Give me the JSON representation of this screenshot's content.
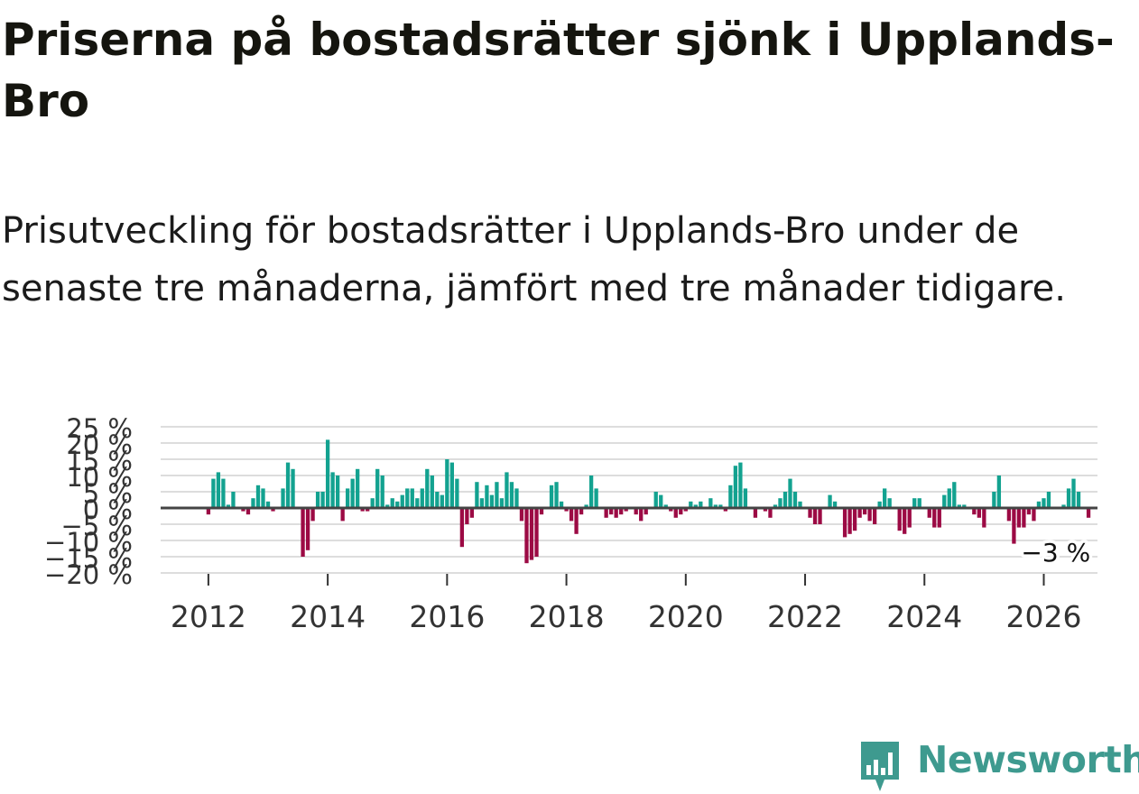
{
  "title": "Priserna på bostadsrätter sjönk i Upplands-Bro",
  "subtitle": "Prisutveckling för bostadsrätter i Upplands-Bro under de senaste tre månaderna, jämfört med tre månader tidigare.",
  "brand": {
    "name": "Newsworthy",
    "color": "#3e9a8f",
    "icon": "bar-chart-badge-icon"
  },
  "colors": {
    "positive": "#13a290",
    "negative": "#9c0a44",
    "grid": "#dddddd",
    "zero": "#444444"
  },
  "chart_data": {
    "type": "bar",
    "title": "Prisutveckling för bostadsrätter i Upplands-Bro",
    "xlabel": "",
    "ylabel": "",
    "ylim": [
      -20,
      25
    ],
    "yticks": [
      25,
      20,
      15,
      10,
      5,
      0,
      -5,
      -10,
      -15,
      -20
    ],
    "ytick_labels": [
      "25 %",
      "20 %",
      "15 %",
      "10 %",
      "5 %",
      "0 %",
      "−5 %",
      "−10 %",
      "−15 %",
      "−20 %"
    ],
    "xlim": [
      2011.2,
      2026.9
    ],
    "xticks": [
      2012,
      2014,
      2016,
      2018,
      2020,
      2022,
      2024,
      2026
    ],
    "xtick_labels": [
      "2012",
      "2014",
      "2016",
      "2018",
      "2020",
      "2022",
      "2024",
      "2026"
    ],
    "grid": true,
    "annotation": {
      "x": 2026.08,
      "y": -3,
      "label": "−3 %"
    },
    "x_start": 2012.0,
    "x_step": 0.08333,
    "values": [
      -2,
      9,
      11,
      9,
      1,
      5,
      0,
      -1,
      -2,
      3,
      7,
      6,
      2,
      -1,
      0,
      6,
      14,
      12,
      0,
      -15,
      -13,
      -4,
      5,
      5,
      21,
      11,
      10,
      -4,
      6,
      9,
      12,
      -1,
      -1,
      3,
      12,
      10,
      1,
      3,
      2,
      4,
      6,
      6,
      3,
      6,
      12,
      10,
      5,
      4,
      15,
      14,
      9,
      -12,
      -5,
      -3,
      8,
      3,
      7,
      4,
      8,
      3,
      11,
      8,
      6,
      -4,
      -17,
      -16,
      -15,
      -2,
      0,
      7,
      8,
      2,
      -1,
      -4,
      -8,
      -2,
      1,
      10,
      6,
      0,
      -3,
      -2,
      -3,
      -2,
      -1,
      0,
      -2,
      -4,
      -2,
      0,
      5,
      4,
      1,
      -1,
      -3,
      -2,
      -1,
      2,
      1,
      2,
      0,
      3,
      1,
      1,
      -1,
      7,
      13,
      14,
      6,
      0,
      -3,
      0,
      -1,
      -3,
      1,
      3,
      5,
      9,
      5,
      2,
      0,
      -3,
      -5,
      -5,
      0,
      4,
      2,
      0,
      -9,
      -8,
      -7,
      -3,
      -2,
      -4,
      -5,
      2,
      6,
      3,
      0,
      -7,
      -8,
      -6,
      3,
      3,
      0,
      -3,
      -6,
      -6,
      4,
      6,
      8,
      1,
      1,
      0,
      -2,
      -3,
      -6,
      0,
      5,
      10,
      0,
      -4,
      -11,
      -6,
      -6,
      -2,
      -4,
      2,
      3,
      5,
      0,
      0,
      1,
      6,
      9,
      5,
      0,
      -3
    ]
  }
}
